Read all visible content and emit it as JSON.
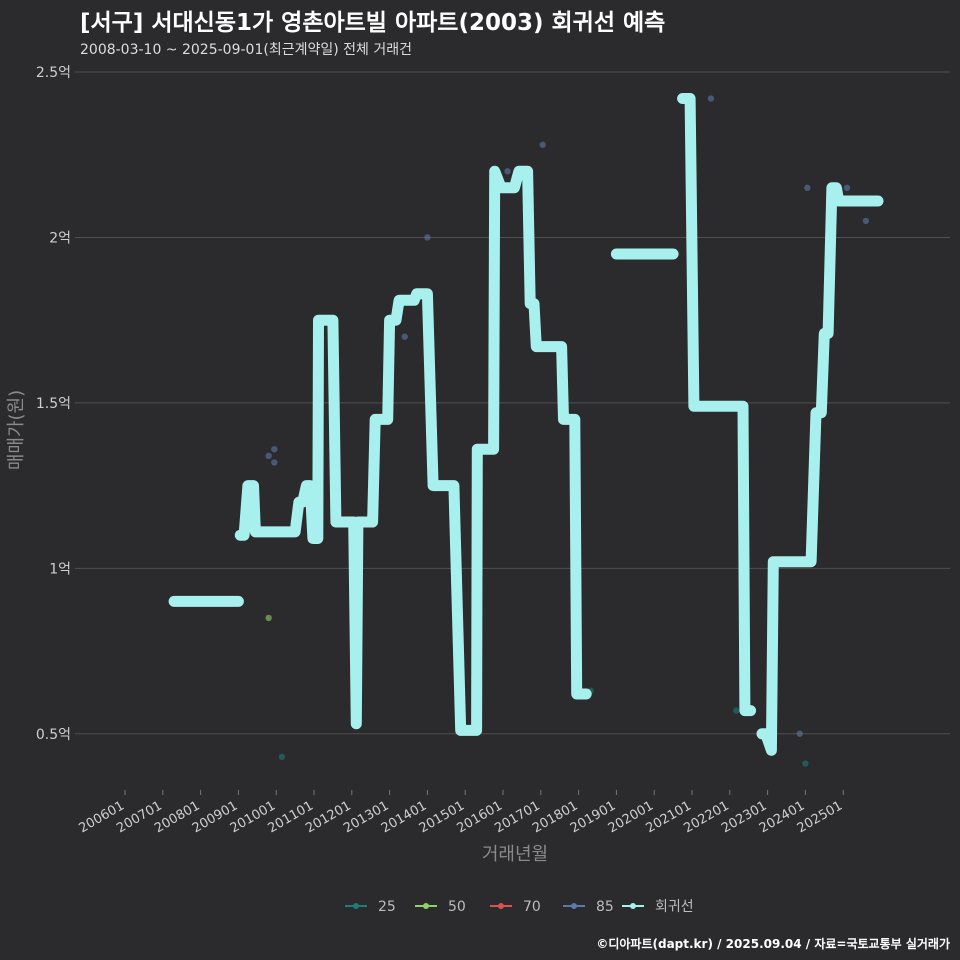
{
  "chart_data": {
    "type": "line",
    "title": "[서구] 서대신동1가 영촌아트빌 아파트(2003) 회귀선 예측",
    "subtitle": "2008-03-10 ~ 2025-09-01(최근계약일) 전체 거래건",
    "xlabel": "거래년월",
    "ylabel": "매매가(원)",
    "caption": "©디아파트(dapt.kr) / 2025.09.04 / 자료=국토교통부 실거래가",
    "x_range": [
      2006.0,
      2025.92
    ],
    "ylim": [
      0.33,
      2.5
    ],
    "y_ticks": [
      {
        "value": 0.5,
        "label": "0.5억"
      },
      {
        "value": 1.0,
        "label": "1억"
      },
      {
        "value": 1.5,
        "label": "1.5억"
      },
      {
        "value": 2.0,
        "label": "2억"
      },
      {
        "value": 2.5,
        "label": "2.5억"
      }
    ],
    "x_ticks": [
      {
        "value": 2006.0,
        "label": "200601"
      },
      {
        "value": 2007.0,
        "label": "200701"
      },
      {
        "value": 2008.0,
        "label": "200801"
      },
      {
        "value": 2009.0,
        "label": "200901"
      },
      {
        "value": 2010.0,
        "label": "201001"
      },
      {
        "value": 2011.0,
        "label": "201101"
      },
      {
        "value": 2012.0,
        "label": "201201"
      },
      {
        "value": 2013.0,
        "label": "201301"
      },
      {
        "value": 2014.0,
        "label": "201401"
      },
      {
        "value": 2015.0,
        "label": "201501"
      },
      {
        "value": 2016.0,
        "label": "201601"
      },
      {
        "value": 2017.0,
        "label": "201701"
      },
      {
        "value": 2018.0,
        "label": "201801"
      },
      {
        "value": 2019.0,
        "label": "201901"
      },
      {
        "value": 2020.0,
        "label": "202001"
      },
      {
        "value": 2021.0,
        "label": "202101"
      },
      {
        "value": 2022.0,
        "label": "202201"
      },
      {
        "value": 2023.0,
        "label": "202301"
      },
      {
        "value": 2024.0,
        "label": "202401"
      },
      {
        "value": 2025.0,
        "label": "202501"
      }
    ],
    "legend": [
      {
        "name": "25",
        "color": "#1f7a7a"
      },
      {
        "name": "50",
        "color": "#8fd16a"
      },
      {
        "name": "70",
        "color": "#d9534f"
      },
      {
        "name": "85",
        "color": "#5b7aa6"
      },
      {
        "name": "회귀선",
        "color": "#a8f0ee"
      }
    ],
    "series": [
      {
        "name": "25",
        "color": "#1f7a7a",
        "points": [
          {
            "x": 2010.15,
            "y": 0.43
          },
          {
            "x": 2012.17,
            "y": 0.53
          },
          {
            "x": 2018.32,
            "y": 0.63
          },
          {
            "x": 2022.17,
            "y": 0.57
          },
          {
            "x": 2024.0,
            "y": 0.41
          }
        ]
      },
      {
        "name": "50",
        "color": "#8fd16a",
        "points": [
          {
            "x": 2009.8,
            "y": 0.85
          }
        ]
      },
      {
        "name": "85",
        "color": "#5b7aa6",
        "points": [
          {
            "x": 2009.8,
            "y": 1.34
          },
          {
            "x": 2009.95,
            "y": 1.36
          },
          {
            "x": 2009.95,
            "y": 1.32
          },
          {
            "x": 2012.95,
            "y": 1.75
          },
          {
            "x": 2013.4,
            "y": 1.7
          },
          {
            "x": 2014.0,
            "y": 2.0
          },
          {
            "x": 2016.12,
            "y": 2.2
          },
          {
            "x": 2017.05,
            "y": 2.28
          },
          {
            "x": 2021.5,
            "y": 2.42
          },
          {
            "x": 2023.85,
            "y": 0.5
          },
          {
            "x": 2024.05,
            "y": 2.15
          },
          {
            "x": 2025.1,
            "y": 2.15
          },
          {
            "x": 2025.6,
            "y": 2.05
          }
        ]
      }
    ],
    "regression": {
      "name": "회귀선",
      "color": "#a8f0ee",
      "segments": [
        [
          [
            2007.3,
            0.9
          ],
          [
            2009.0,
            0.9
          ]
        ],
        [
          [
            2009.05,
            1.1
          ],
          [
            2009.15,
            1.1
          ],
          [
            2009.25,
            1.25
          ],
          [
            2009.4,
            1.25
          ],
          [
            2009.45,
            1.11
          ],
          [
            2010.5,
            1.11
          ],
          [
            2010.6,
            1.2
          ],
          [
            2010.7,
            1.2
          ],
          [
            2010.8,
            1.25
          ],
          [
            2010.9,
            1.25
          ],
          [
            2010.97,
            1.09
          ],
          [
            2011.1,
            1.09
          ],
          [
            2011.12,
            1.75
          ],
          [
            2011.5,
            1.75
          ],
          [
            2011.58,
            1.14
          ],
          [
            2012.05,
            1.14
          ],
          [
            2012.12,
            0.53
          ],
          [
            2012.16,
            1.14
          ],
          [
            2012.55,
            1.14
          ],
          [
            2012.62,
            1.45
          ],
          [
            2012.95,
            1.45
          ],
          [
            2013.0,
            1.75
          ],
          [
            2013.17,
            1.75
          ],
          [
            2013.25,
            1.81
          ],
          [
            2013.65,
            1.81
          ],
          [
            2013.72,
            1.83
          ],
          [
            2014.0,
            1.83
          ],
          [
            2014.15,
            1.25
          ],
          [
            2014.7,
            1.25
          ],
          [
            2014.88,
            0.51
          ],
          [
            2015.3,
            0.51
          ],
          [
            2015.32,
            1.36
          ],
          [
            2015.75,
            1.36
          ],
          [
            2015.78,
            2.2
          ],
          [
            2015.95,
            2.15
          ],
          [
            2016.3,
            2.15
          ],
          [
            2016.42,
            2.2
          ],
          [
            2016.65,
            2.2
          ],
          [
            2016.72,
            1.8
          ],
          [
            2016.82,
            1.8
          ],
          [
            2016.88,
            1.67
          ],
          [
            2017.55,
            1.67
          ],
          [
            2017.6,
            1.45
          ],
          [
            2017.9,
            1.45
          ],
          [
            2017.95,
            0.62
          ],
          [
            2018.2,
            0.62
          ]
        ],
        [
          [
            2019.0,
            1.95
          ],
          [
            2020.5,
            1.95
          ]
        ],
        [
          [
            2020.75,
            2.42
          ],
          [
            2020.95,
            2.42
          ],
          [
            2021.05,
            1.49
          ],
          [
            2022.35,
            1.49
          ],
          [
            2022.4,
            0.57
          ],
          [
            2022.55,
            0.57
          ]
        ],
        [
          [
            2022.85,
            0.5
          ],
          [
            2022.95,
            0.5
          ],
          [
            2023.1,
            0.45
          ],
          [
            2023.15,
            1.02
          ],
          [
            2024.15,
            1.02
          ],
          [
            2024.28,
            1.47
          ],
          [
            2024.42,
            1.47
          ],
          [
            2024.5,
            1.71
          ],
          [
            2024.6,
            1.71
          ],
          [
            2024.7,
            2.15
          ],
          [
            2024.82,
            2.15
          ],
          [
            2024.88,
            2.11
          ],
          [
            2025.92,
            2.11
          ]
        ]
      ]
    }
  }
}
